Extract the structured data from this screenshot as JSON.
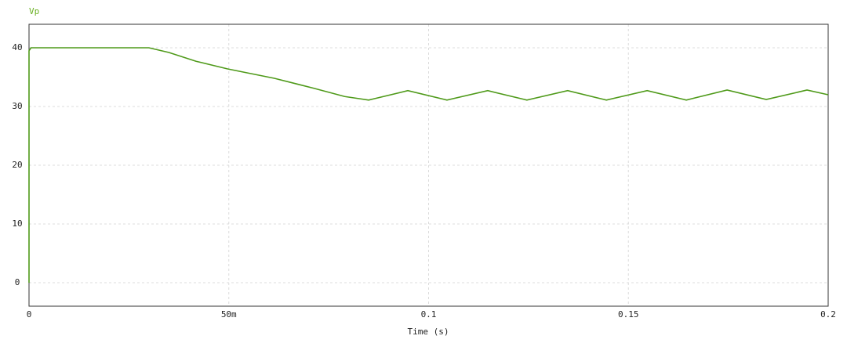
{
  "chart_data": {
    "type": "line",
    "title": "Vp",
    "x_label": "Time (s)",
    "x": [
      0,
      0,
      0.0005,
      0.03,
      0.035,
      0.0418,
      0.0497,
      0.0614,
      0.0713,
      0.079,
      0.085,
      0.0948,
      0.1046,
      0.1148,
      0.1246,
      0.1348,
      0.1445,
      0.1547,
      0.1645,
      0.1747,
      0.1845,
      0.1947,
      0.2
    ],
    "series": [
      {
        "name": "Vp",
        "color": "#4f9a1a",
        "values": [
          0,
          39.5,
          40,
          40,
          39.2,
          37.7,
          36.4,
          34.8,
          33.1,
          31.7,
          31.1,
          32.7,
          31.1,
          32.7,
          31.1,
          32.7,
          31.1,
          32.7,
          31.1,
          32.8,
          31.2,
          32.8,
          32.0
        ]
      }
    ],
    "xlim": [
      0,
      0.2
    ],
    "xticks": [
      0,
      {
        "value": 0.05,
        "label": "50m"
      },
      0.1,
      0.15,
      0.2
    ],
    "ylim": [
      -4,
      44
    ],
    "yticks": [
      0,
      10,
      20,
      30,
      40
    ],
    "grid": true
  }
}
